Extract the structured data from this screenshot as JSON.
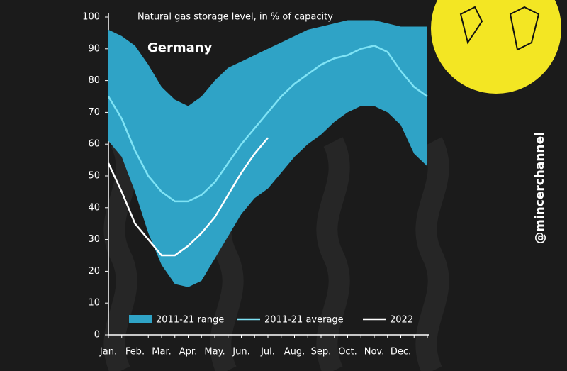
{
  "chart_data": {
    "type": "line",
    "title": "Natural gas storage level, in % of capacity",
    "annotation": "Germany",
    "watermark": "@mincerchannel",
    "categories": [
      "Jan.",
      null,
      "Feb.",
      null,
      "Mar.",
      null,
      "Apr.",
      null,
      "May.",
      null,
      "Jun.",
      null,
      "Jul.",
      null,
      "Aug.",
      null,
      "Sep.",
      null,
      "Oct.",
      null,
      "Nov.",
      null,
      "Dec.",
      null,
      null
    ],
    "ylim": [
      0,
      100
    ],
    "yticks": [
      0,
      10,
      20,
      30,
      40,
      50,
      60,
      70,
      80,
      90,
      100
    ],
    "series": [
      {
        "name": "2011-21 range",
        "color": "#2fa3c6",
        "kind": "range",
        "high": [
          96,
          94,
          91,
          85,
          78,
          74,
          72,
          75,
          80,
          84,
          86,
          88,
          90,
          92,
          94,
          96,
          97,
          98,
          99,
          99,
          99,
          98,
          97,
          97,
          97
        ],
        "low": [
          61,
          56,
          45,
          32,
          22,
          16,
          15,
          17,
          24,
          31,
          38,
          43,
          46,
          51,
          56,
          60,
          63,
          67,
          70,
          72,
          72,
          70,
          66,
          57,
          53
        ]
      },
      {
        "name": "2011-21 average",
        "color": "#7fe3f5",
        "kind": "line",
        "values": [
          75,
          68,
          58,
          50,
          45,
          42,
          42,
          44,
          48,
          54,
          60,
          65,
          70,
          75,
          79,
          82,
          85,
          87,
          88,
          90,
          91,
          89,
          83,
          78,
          75
        ]
      },
      {
        "name": "2022",
        "color": "#ffffff",
        "kind": "line",
        "values": [
          54,
          45,
          35,
          30,
          25,
          25,
          28,
          32,
          37,
          44,
          51,
          57,
          62,
          null,
          null,
          null,
          null,
          null,
          null,
          null,
          null,
          null,
          null,
          null,
          null
        ]
      }
    ]
  }
}
